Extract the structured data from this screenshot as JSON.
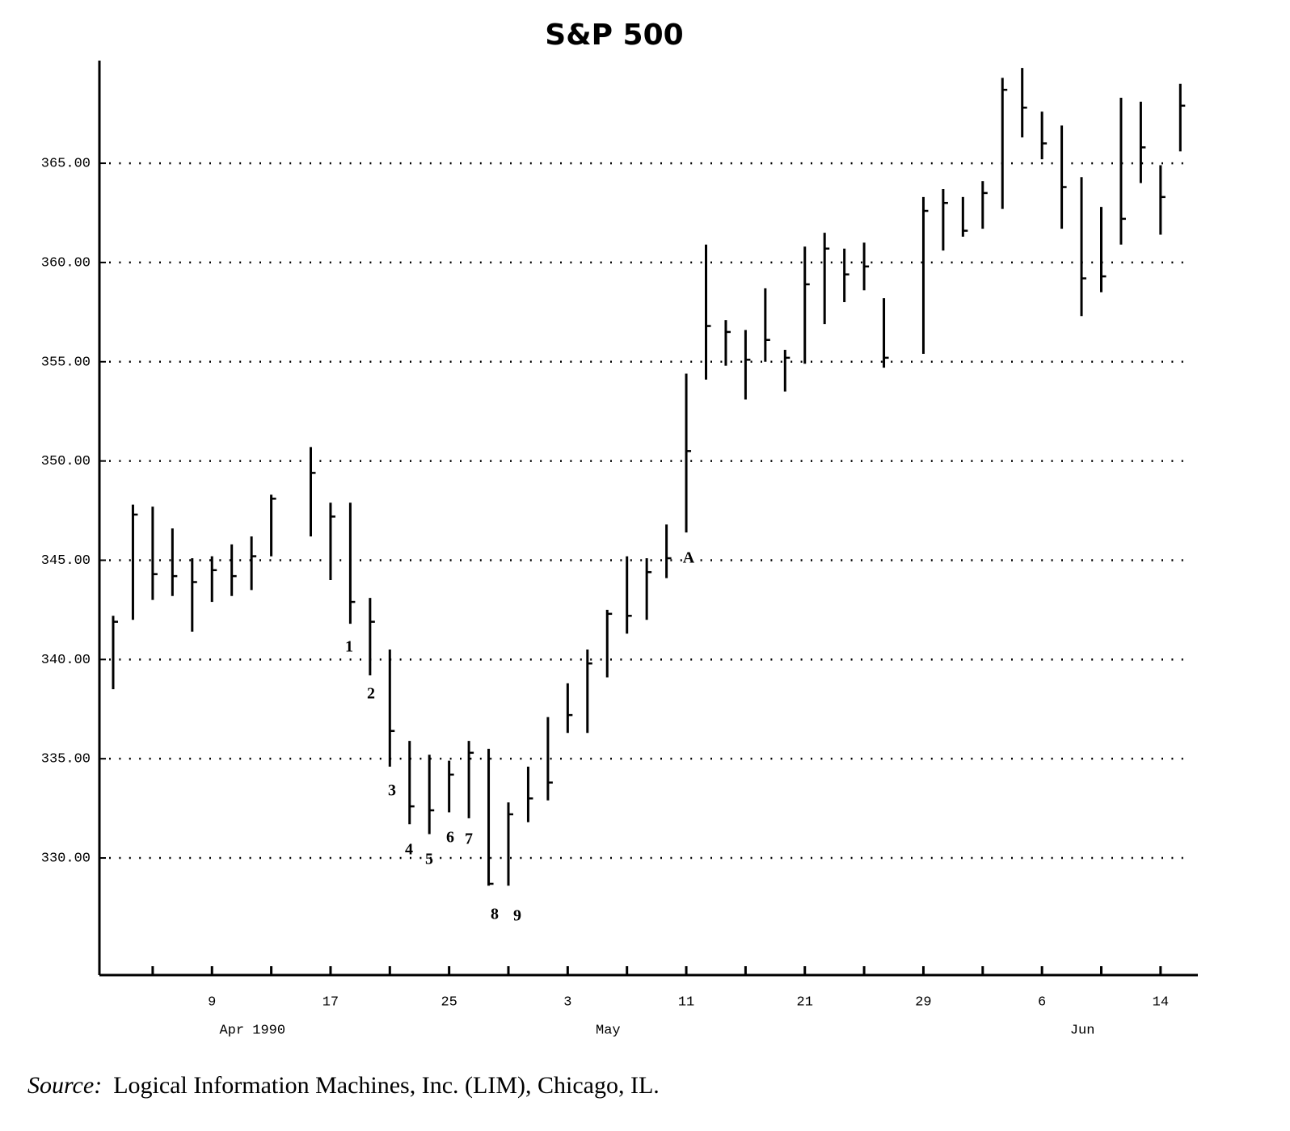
{
  "chart_data": {
    "type": "hlc",
    "title": "S&P 500",
    "source_label": "Source:",
    "source": "Logical Information Machines, Inc. (LIM), Chicago, IL.",
    "categories": [
      null,
      null,
      null,
      null,
      null,
      "9",
      null,
      null,
      null,
      null,
      null,
      "17",
      null,
      null,
      null,
      null,
      null,
      "25",
      null,
      null,
      null,
      null,
      null,
      "3",
      null,
      null,
      null,
      null,
      null,
      "11",
      null,
      null,
      null,
      null,
      null,
      "21",
      null,
      null,
      null,
      null,
      null,
      "29",
      null,
      null,
      null,
      null,
      null,
      "6",
      null,
      null,
      null,
      null,
      null,
      "14",
      null
    ],
    "months": [
      null,
      null,
      null,
      null,
      null,
      "Apr 1990",
      null,
      null,
      null,
      null,
      null,
      null,
      null,
      null,
      null,
      null,
      null,
      null,
      null,
      null,
      null,
      null,
      null,
      "May",
      null,
      null,
      null,
      null,
      null,
      null,
      null,
      null,
      null,
      null,
      null,
      null,
      null,
      null,
      null,
      null,
      null,
      null,
      null,
      null,
      null,
      null,
      null,
      "Jun",
      null,
      null,
      null,
      null,
      null,
      null,
      null
    ],
    "high": [
      342.2,
      347.8,
      347.7,
      346.6,
      345.1,
      345.2,
      345.8,
      346.2,
      348.3,
      null,
      350.7,
      347.9,
      347.9,
      343.1,
      340.5,
      335.9,
      335.2,
      334.9,
      335.9,
      335.5,
      332.8,
      334.6,
      337.1,
      338.8,
      340.5,
      342.5,
      345.2,
      345.1,
      346.8,
      354.4,
      360.9,
      357.1,
      356.6,
      358.7,
      355.6,
      360.8,
      361.5,
      360.7,
      361.0,
      358.2,
      null,
      363.3,
      363.7,
      363.3,
      364.1,
      369.3,
      369.8,
      367.6,
      366.9,
      364.3,
      362.8,
      368.3,
      368.1,
      364.9,
      369.0
    ],
    "low": [
      338.5,
      342.0,
      343.0,
      343.2,
      341.4,
      342.9,
      343.2,
      343.5,
      345.2,
      null,
      346.2,
      344.0,
      341.8,
      339.2,
      334.6,
      331.7,
      331.2,
      332.3,
      332.0,
      328.6,
      328.6,
      331.8,
      332.9,
      336.3,
      336.3,
      339.1,
      341.3,
      342.0,
      344.1,
      346.4,
      354.1,
      354.8,
      353.1,
      355.0,
      353.5,
      354.9,
      356.9,
      358.0,
      358.6,
      354.7,
      null,
      355.4,
      360.6,
      361.3,
      361.7,
      362.7,
      366.3,
      365.2,
      361.7,
      357.3,
      358.5,
      360.9,
      364.0,
      361.4,
      365.6
    ],
    "close": [
      341.9,
      347.3,
      344.3,
      344.2,
      343.9,
      344.5,
      344.2,
      345.2,
      348.1,
      null,
      349.4,
      347.2,
      342.9,
      341.9,
      336.4,
      332.6,
      332.4,
      334.2,
      335.3,
      328.7,
      332.2,
      333.0,
      333.8,
      337.2,
      339.8,
      342.3,
      342.2,
      344.4,
      345.1,
      350.5,
      356.8,
      356.5,
      355.1,
      356.1,
      355.2,
      358.9,
      360.7,
      359.4,
      359.8,
      355.2,
      null,
      362.6,
      363.0,
      361.6,
      363.5,
      368.7,
      367.8,
      366.0,
      363.8,
      359.2,
      359.3,
      362.2,
      365.8,
      363.3,
      367.9
    ],
    "annotations": [
      "1",
      "2",
      "3",
      "4",
      "5",
      "6",
      "7",
      "8",
      "9",
      "A"
    ],
    "ylim": [
      324.1,
      370.2
    ],
    "yticks": [
      {
        "value": 330,
        "label": "330.00"
      },
      {
        "value": 335,
        "label": "335.00"
      },
      {
        "value": 340,
        "label": "340.00"
      },
      {
        "value": 345,
        "label": "345.00"
      },
      {
        "value": 350,
        "label": "350.00"
      },
      {
        "value": 355,
        "label": "355.00"
      },
      {
        "value": 360,
        "label": "360.00"
      },
      {
        "value": 365,
        "label": "365.00"
      }
    ],
    "grid": true,
    "color": "#000000"
  }
}
